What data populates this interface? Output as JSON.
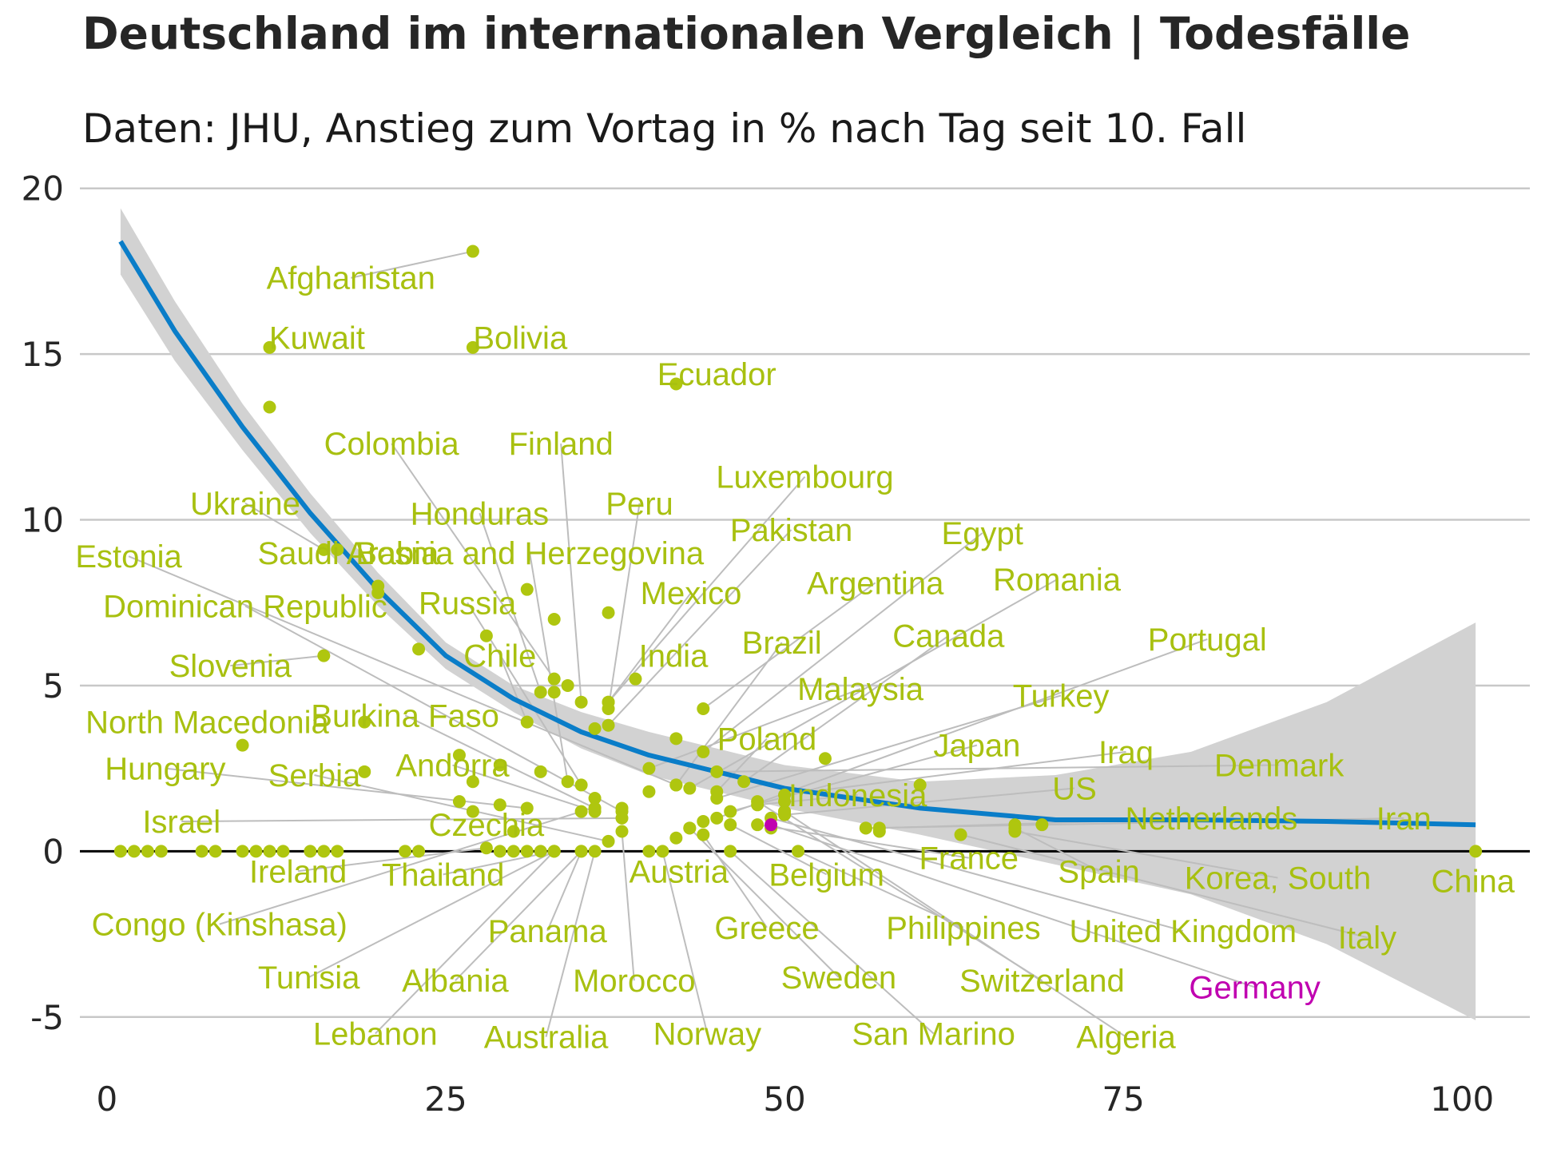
{
  "title": "Deutschland im internationalen Vergleich | Todesfälle",
  "subtitle": "Daten: JHU, Anstieg zum Vortag in % nach Tag seit 10. Fall",
  "colors": {
    "points": "#afc60f",
    "labels": "#a8c010",
    "highlight": "#c000b0",
    "trend": "#0a7dc8",
    "band": "#d2d2d2",
    "grid": "#c8c8c8",
    "leader": "#bdbdbd",
    "zero_line": "#000000"
  },
  "chart_data": {
    "type": "scatter",
    "title": "Deutschland im internationalen Vergleich | Todesfälle",
    "subtitle": "Daten: JHU, Anstieg zum Vortag in % nach Tag seit 10. Fall",
    "xlabel": "",
    "ylabel": "",
    "xlim": [
      -2,
      105
    ],
    "ylim": [
      -6.5,
      20.5
    ],
    "xticks": [
      0,
      25,
      50,
      75,
      100
    ],
    "yticks": [
      -5,
      0,
      5,
      10,
      15,
      20
    ],
    "grid": "horizontal",
    "highlight": "Germany",
    "labeled_points": [
      {
        "name": "Afghanistan",
        "x": 27,
        "y": 18.1,
        "lx": 18,
        "ly": 17.3
      },
      {
        "name": "Kuwait",
        "x": 12,
        "y": 15.2,
        "lx": 15.5,
        "ly": 15.5
      },
      {
        "name": "Bolivia",
        "x": 27,
        "y": 15.2,
        "lx": 30.5,
        "ly": 15.5
      },
      {
        "name": "Ecuador",
        "x": 42,
        "y": 14.1,
        "lx": 45,
        "ly": 14.4
      },
      {
        "name": "Finland",
        "x": 35,
        "y": 4.5,
        "lx": 33.5,
        "ly": 12.3
      },
      {
        "name": "Colombia",
        "x": 33,
        "y": 5.2,
        "lx": 21,
        "ly": 12.3
      },
      {
        "name": "Luxembourg",
        "x": 37,
        "y": 4.5,
        "lx": 51.5,
        "ly": 11.3
      },
      {
        "name": "Ukraine",
        "x": 16,
        "y": 9.1,
        "lx": 10.2,
        "ly": 10.5
      },
      {
        "name": "Peru",
        "x": 37,
        "y": 4.3,
        "lx": 39.3,
        "ly": 10.5
      },
      {
        "name": "Honduras",
        "x": 32,
        "y": 4.8,
        "lx": 27.5,
        "ly": 10.2
      },
      {
        "name": "Pakistan",
        "x": 37,
        "y": 3.8,
        "lx": 50.5,
        "ly": 9.7
      },
      {
        "name": "Egypt",
        "x": 44,
        "y": 3.0,
        "lx": 64.6,
        "ly": 9.6
      },
      {
        "name": "Bosnia and Herzegovina",
        "x": 34,
        "y": 2.1,
        "lx": 31.2,
        "ly": 9.0
      },
      {
        "name": "Saudi Arabia",
        "x": 17,
        "y": 9.1,
        "lx": 17.8,
        "ly": 9.0
      },
      {
        "name": "Estonia",
        "x": 42,
        "y": 2.0,
        "lx": 1.6,
        "ly": 8.9
      },
      {
        "name": "Mexico",
        "x": 37,
        "y": 4.5,
        "lx": 43.1,
        "ly": 7.8
      },
      {
        "name": "Argentina",
        "x": 44,
        "y": 4.3,
        "lx": 56.7,
        "ly": 8.1
      },
      {
        "name": "Romania",
        "x": 43,
        "y": 1.9,
        "lx": 70.1,
        "ly": 8.2
      },
      {
        "name": "Russia",
        "x": 35,
        "y": 2.0,
        "lx": 26.6,
        "ly": 7.5
      },
      {
        "name": "Dominican Republic",
        "x": 38,
        "y": 1.2,
        "lx": 10.2,
        "ly": 7.4
      },
      {
        "name": "Chile",
        "x": 31,
        "y": 3.9,
        "lx": 29.0,
        "ly": 5.9
      },
      {
        "name": "India",
        "x": 39,
        "y": 5.2,
        "lx": 41.8,
        "ly": 5.9
      },
      {
        "name": "Brazil",
        "x": 42,
        "y": 2.0,
        "lx": 49.8,
        "ly": 6.3
      },
      {
        "name": "Canada",
        "x": 47,
        "y": 2.1,
        "lx": 62.1,
        "ly": 6.5
      },
      {
        "name": "Portugal",
        "x": 45,
        "y": 1.0,
        "lx": 81.2,
        "ly": 6.4
      },
      {
        "name": "Slovenia",
        "x": 16,
        "y": 5.9,
        "lx": 9.1,
        "ly": 5.6
      },
      {
        "name": "Malaysia",
        "x": 40,
        "y": 2.5,
        "lx": 55.6,
        "ly": 4.9
      },
      {
        "name": "Turkey",
        "x": 45,
        "y": 1.6,
        "lx": 70.4,
        "ly": 4.7
      },
      {
        "name": "Burkina Faso",
        "x": 36,
        "y": 1.3,
        "lx": 22.0,
        "ly": 4.1
      },
      {
        "name": "North Macedonia",
        "x": 10,
        "y": 3.2,
        "lx": 7.4,
        "ly": 3.9
      },
      {
        "name": "Poland",
        "x": 45,
        "y": 1.8,
        "lx": 48.7,
        "ly": 3.4
      },
      {
        "name": "Japan",
        "x": 46,
        "y": 1.2,
        "lx": 64.2,
        "ly": 3.2
      },
      {
        "name": "Iraq",
        "x": 50,
        "y": 1.7,
        "lx": 75.2,
        "ly": 3.0
      },
      {
        "name": "Denmark",
        "x": 45,
        "y": 2.4,
        "lx": 86.5,
        "ly": 2.6
      },
      {
        "name": "Hungary",
        "x": 31,
        "y": 1.3,
        "lx": 4.3,
        "ly": 2.5
      },
      {
        "name": "Andorra",
        "x": 36,
        "y": 1.2,
        "lx": 25.5,
        "ly": 2.6
      },
      {
        "name": "Serbia",
        "x": 37,
        "y": 0.3,
        "lx": 15.3,
        "ly": 2.3
      },
      {
        "name": "Indonesia",
        "x": 48,
        "y": 1.4,
        "lx": 55.4,
        "ly": 1.7
      },
      {
        "name": "US",
        "x": 50,
        "y": 1.1,
        "lx": 71.4,
        "ly": 1.9
      },
      {
        "name": "Israel",
        "x": 38,
        "y": 1.0,
        "lx": 5.5,
        "ly": 0.9
      },
      {
        "name": "Czechia",
        "x": 30,
        "y": 0.6,
        "lx": 28.0,
        "ly": 0.8
      },
      {
        "name": "Netherlands",
        "x": 57,
        "y": 0.7,
        "lx": 81.5,
        "ly": 1.0
      },
      {
        "name": "Iran",
        "x": 56,
        "y": 0.7,
        "lx": 95.7,
        "ly": 1.0
      },
      {
        "name": "France",
        "x": 48,
        "y": 0.8,
        "lx": 63.6,
        "ly": -0.2
      },
      {
        "name": "Spain",
        "x": 67,
        "y": 0.7,
        "lx": 73.2,
        "ly": -0.6
      },
      {
        "name": "Korea, South",
        "x": 67,
        "y": 0.6,
        "lx": 86.4,
        "ly": -0.8
      },
      {
        "name": "China",
        "x": 101,
        "y": 0.0,
        "lx": 100.8,
        "ly": -0.9
      },
      {
        "name": "Ireland",
        "x": 28,
        "y": 0.1,
        "lx": 14.1,
        "ly": -0.6
      },
      {
        "name": "Thailand",
        "x": 33,
        "y": 0.0,
        "lx": 24.8,
        "ly": -0.7
      },
      {
        "name": "Austria",
        "x": 40,
        "y": 0.0,
        "lx": 42.2,
        "ly": -0.6
      },
      {
        "name": "Belgium",
        "x": 46,
        "y": 0.8,
        "lx": 53.1,
        "ly": -0.7
      },
      {
        "name": "Congo (Kinshasa)",
        "x": 35,
        "y": 1.2,
        "lx": 8.3,
        "ly": -2.2
      },
      {
        "name": "Panama",
        "x": 35,
        "y": 0.0,
        "lx": 32.5,
        "ly": -2.4
      },
      {
        "name": "Greece",
        "x": 44,
        "y": 0.5,
        "lx": 48.7,
        "ly": -2.3
      },
      {
        "name": "Philippines",
        "x": 51,
        "y": 0.0,
        "lx": 63.2,
        "ly": -2.3
      },
      {
        "name": "United Kingdom",
        "x": 49,
        "y": 1.0,
        "lx": 79.4,
        "ly": -2.4
      },
      {
        "name": "Italy",
        "x": 63,
        "y": 0.5,
        "lx": 93.0,
        "ly": -2.6
      },
      {
        "name": "Tunisia",
        "x": 33,
        "y": 0.0,
        "lx": 14.9,
        "ly": -3.8
      },
      {
        "name": "Albania",
        "x": 35,
        "y": 0.0,
        "lx": 25.7,
        "ly": -3.9
      },
      {
        "name": "Morocco",
        "x": 38,
        "y": 0.6,
        "lx": 38.9,
        "ly": -3.9
      },
      {
        "name": "Sweden",
        "x": 43,
        "y": 0.7,
        "lx": 54.0,
        "ly": -3.8
      },
      {
        "name": "Switzerland",
        "x": 48,
        "y": 1.5,
        "lx": 69.0,
        "ly": -3.9
      },
      {
        "name": "Germany",
        "x": 49,
        "y": 0.8,
        "lx": 84.7,
        "ly": -4.1
      },
      {
        "name": "Lebanon",
        "x": 33,
        "y": 0.0,
        "lx": 19.8,
        "ly": -5.5
      },
      {
        "name": "Australia",
        "x": 36,
        "y": 0.0,
        "lx": 32.4,
        "ly": -5.6
      },
      {
        "name": "Norway",
        "x": 41,
        "y": 0.0,
        "lx": 44.3,
        "ly": -5.5
      },
      {
        "name": "San Marino",
        "x": 46,
        "y": 0.0,
        "lx": 61.0,
        "ly": -5.5
      },
      {
        "name": "Algeria",
        "x": 50,
        "y": 1.2,
        "lx": 75.2,
        "ly": -5.6
      }
    ],
    "other_points": [
      [
        12,
        13.4
      ],
      [
        20,
        8.0
      ],
      [
        20,
        7.8
      ],
      [
        23,
        6.1
      ],
      [
        28,
        6.5
      ],
      [
        31,
        7.9
      ],
      [
        33,
        7.0
      ],
      [
        37,
        7.2
      ],
      [
        33,
        4.8
      ],
      [
        34,
        5.0
      ],
      [
        36,
        3.7
      ],
      [
        42,
        3.4
      ],
      [
        19,
        3.9
      ],
      [
        26,
        2.9
      ],
      [
        27,
        2.1
      ],
      [
        29,
        2.6
      ],
      [
        19,
        2.4
      ],
      [
        32,
        2.4
      ],
      [
        26,
        1.5
      ],
      [
        29,
        1.4
      ],
      [
        27,
        1.2
      ],
      [
        38,
        1.3
      ],
      [
        40,
        1.8
      ],
      [
        53,
        2.8
      ],
      [
        60,
        2.0
      ],
      [
        50,
        1.2
      ],
      [
        50,
        1.5
      ],
      [
        56,
        0.7
      ],
      [
        57,
        0.6
      ],
      [
        69,
        0.8
      ],
      [
        67,
        0.8
      ],
      [
        36,
        1.6
      ],
      [
        42,
        0.4
      ],
      [
        43,
        0.7
      ],
      [
        44,
        0.9
      ],
      [
        49,
        0.7
      ],
      [
        1,
        0
      ],
      [
        2,
        0
      ],
      [
        3,
        0
      ],
      [
        4,
        0
      ],
      [
        7,
        0
      ],
      [
        8,
        0
      ],
      [
        10,
        0
      ],
      [
        11,
        0
      ],
      [
        12,
        0
      ],
      [
        13,
        0
      ],
      [
        15,
        0
      ],
      [
        16,
        0
      ],
      [
        17,
        0
      ],
      [
        22,
        0
      ],
      [
        23,
        0
      ],
      [
        29,
        0
      ],
      [
        30,
        0
      ],
      [
        31,
        0
      ],
      [
        32,
        0
      ]
    ],
    "trend_line": {
      "x": [
        1,
        5,
        10,
        15,
        20,
        25,
        30,
        35,
        40,
        45,
        50,
        60,
        70,
        80,
        90,
        101
      ],
      "y": [
        18.4,
        15.7,
        12.8,
        10.2,
        7.9,
        5.9,
        4.6,
        3.6,
        2.9,
        2.4,
        1.9,
        1.3,
        0.95,
        0.95,
        0.9,
        0.8
      ]
    },
    "confidence_band": {
      "x": [
        1,
        5,
        10,
        15,
        20,
        25,
        30,
        35,
        40,
        45,
        50,
        60,
        70,
        80,
        90,
        101
      ],
      "upper": [
        19.4,
        16.6,
        13.5,
        10.8,
        8.4,
        6.3,
        5.0,
        4.2,
        3.6,
        3.1,
        2.6,
        2.1,
        2.3,
        3.0,
        4.5,
        6.9
      ],
      "lower": [
        17.4,
        14.8,
        12.1,
        9.6,
        7.4,
        5.5,
        4.2,
        3.1,
        2.3,
        1.8,
        1.3,
        0.5,
        -0.4,
        -1.3,
        -2.8,
        -5.1
      ]
    }
  }
}
